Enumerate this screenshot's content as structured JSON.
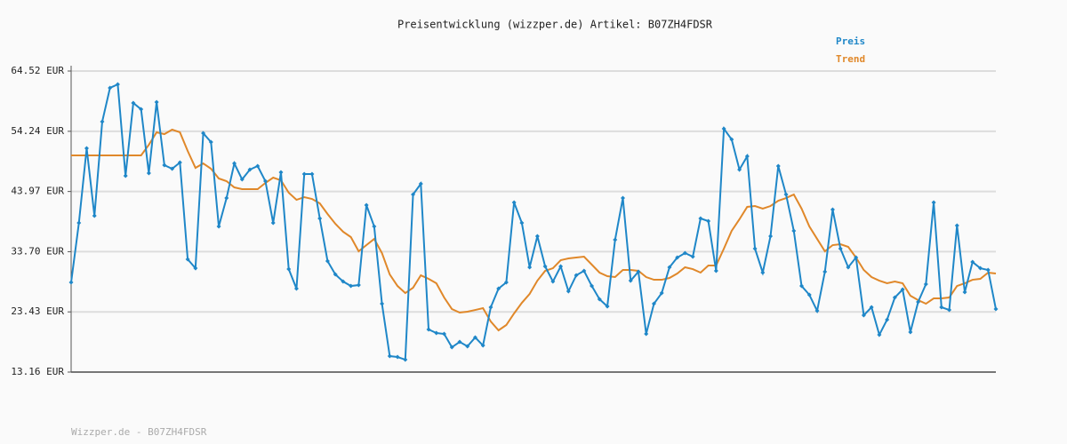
{
  "chart_data": {
    "type": "line",
    "title": "Preisentwicklung (wizzper.de) Artikel: B07ZH4FDSR",
    "footer": "Wizzper.de - B07ZH4FDSR",
    "legend": "top-right",
    "grid": true,
    "ylim": [
      13.16,
      64.52
    ],
    "yticks": [
      {
        "value": 13.16,
        "label": "13.16 EUR"
      },
      {
        "value": 23.43,
        "label": "23.43 EUR"
      },
      {
        "value": 33.7,
        "label": "33.70 EUR"
      },
      {
        "value": 43.97,
        "label": "43.97 EUR"
      },
      {
        "value": 54.24,
        "label": "54.24 EUR"
      },
      {
        "value": 64.52,
        "label": "64.52 EUR"
      }
    ],
    "series": [
      {
        "name": "Preis",
        "color": "#1f87c8",
        "markers": true,
        "values": [
          28.46,
          38.61,
          51.34,
          39.82,
          55.88,
          61.64,
          62.25,
          46.64,
          59.07,
          58.0,
          47.1,
          59.22,
          48.46,
          47.85,
          48.91,
          32.4,
          30.88,
          53.91,
          52.4,
          38.0,
          42.85,
          48.76,
          46.04,
          47.7,
          48.31,
          45.73,
          38.61,
          47.25,
          30.73,
          27.4,
          46.94,
          46.94,
          39.37,
          32.1,
          29.82,
          28.61,
          27.85,
          28.0,
          41.64,
          38.0,
          24.82,
          15.88,
          15.73,
          15.28,
          43.46,
          45.28,
          20.43,
          19.82,
          19.67,
          17.4,
          18.31,
          17.55,
          19.07,
          17.7,
          24.22,
          27.4,
          28.46,
          42.1,
          38.61,
          31.04,
          36.34,
          31.19,
          28.61,
          31.19,
          26.94,
          29.67,
          30.43,
          27.85,
          25.58,
          24.37,
          35.73,
          42.85,
          28.76,
          30.28,
          19.67,
          24.82,
          26.64,
          31.04,
          32.7,
          33.46,
          32.85,
          39.37,
          38.91,
          30.43,
          54.67,
          52.85,
          47.7,
          49.97,
          34.22,
          30.13,
          36.34,
          48.31,
          43.46,
          37.25,
          27.85,
          26.34,
          23.61,
          30.28,
          40.88,
          34.22,
          31.04,
          32.7,
          22.85,
          24.22,
          19.52,
          22.1,
          25.88,
          27.25,
          19.97,
          25.13,
          28.16,
          42.1,
          24.22,
          23.76,
          38.16,
          26.79,
          31.94,
          30.88,
          30.58,
          23.91
        ]
      },
      {
        "name": "Trend",
        "color": "#e0882a",
        "markers": false,
        "values": [
          50.13,
          50.13,
          50.13,
          50.13,
          50.13,
          50.13,
          50.13,
          50.13,
          50.13,
          50.13,
          51.94,
          54.07,
          53.76,
          54.52,
          54.07,
          50.88,
          48.0,
          48.76,
          47.85,
          46.19,
          45.73,
          44.67,
          44.37,
          44.37,
          44.37,
          45.43,
          46.34,
          45.88,
          43.76,
          42.55,
          43.0,
          42.7,
          41.94,
          40.13,
          38.46,
          37.1,
          36.19,
          33.76,
          34.82,
          35.88,
          33.46,
          29.82,
          27.85,
          26.64,
          27.55,
          29.67,
          29.07,
          28.31,
          25.88,
          23.91,
          23.31,
          23.46,
          23.76,
          24.07,
          21.79,
          20.28,
          21.19,
          23.16,
          24.97,
          26.49,
          28.76,
          30.43,
          30.88,
          32.25,
          32.55,
          32.7,
          32.85,
          31.49,
          30.13,
          29.52,
          29.37,
          30.58,
          30.58,
          30.43,
          29.37,
          28.91,
          28.91,
          29.22,
          29.97,
          31.04,
          30.73,
          30.13,
          31.34,
          31.34,
          34.22,
          37.25,
          39.22,
          41.34,
          41.49,
          41.04,
          41.49,
          42.4,
          42.85,
          43.46,
          41.04,
          38.0,
          35.88,
          33.76,
          34.82,
          34.97,
          34.52,
          32.7,
          30.58,
          29.37,
          28.76,
          28.31,
          28.61,
          28.31,
          26.19,
          25.43,
          24.82,
          25.73,
          25.73,
          25.88,
          27.85,
          28.31,
          28.91,
          29.07,
          30.13,
          29.97
        ]
      }
    ]
  }
}
